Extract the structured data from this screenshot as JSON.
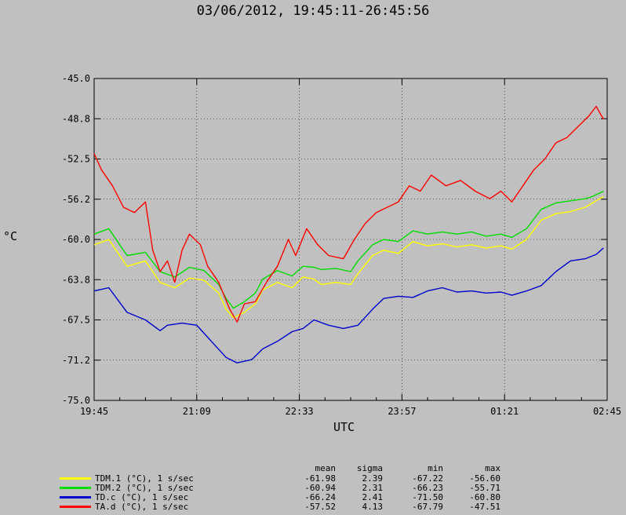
{
  "chart_data": {
    "type": "line",
    "title": "03/06/2012, 19:45:11-26:45:56",
    "xlabel": "UTC",
    "ylabel": "°C",
    "x_ticks": [
      "19:45",
      "21:09",
      "22:33",
      "23:57",
      "01:21",
      "02:45"
    ],
    "y_ticks": [
      "-45.0",
      "-48.8",
      "-52.5",
      "-56.2",
      "-60.0",
      "-63.8",
      "-67.5",
      "-71.2",
      "-75.0"
    ],
    "ylim": [
      -75.0,
      -45.0
    ],
    "xlim_hours": [
      0,
      7
    ],
    "grid": "dotted",
    "series": [
      {
        "name": "TDM.1 (°C), 1 s/sec",
        "color": "#ffff00",
        "points": [
          [
            0,
            -60.5
          ],
          [
            0.2,
            -60.0
          ],
          [
            0.45,
            -62.5
          ],
          [
            0.7,
            -62.0
          ],
          [
            0.9,
            -64.0
          ],
          [
            1.1,
            -64.5
          ],
          [
            1.3,
            -63.6
          ],
          [
            1.5,
            -63.8
          ],
          [
            1.7,
            -65.0
          ],
          [
            1.8,
            -66.5
          ],
          [
            1.9,
            -67.3
          ],
          [
            2.05,
            -66.8
          ],
          [
            2.2,
            -66.0
          ],
          [
            2.3,
            -64.7
          ],
          [
            2.5,
            -64.0
          ],
          [
            2.7,
            -64.5
          ],
          [
            2.85,
            -63.5
          ],
          [
            3.0,
            -63.7
          ],
          [
            3.1,
            -64.2
          ],
          [
            3.3,
            -64.0
          ],
          [
            3.5,
            -64.2
          ],
          [
            3.6,
            -63.2
          ],
          [
            3.8,
            -61.5
          ],
          [
            3.95,
            -61.0
          ],
          [
            4.15,
            -61.3
          ],
          [
            4.35,
            -60.2
          ],
          [
            4.55,
            -60.6
          ],
          [
            4.75,
            -60.4
          ],
          [
            4.95,
            -60.7
          ],
          [
            5.15,
            -60.5
          ],
          [
            5.35,
            -60.8
          ],
          [
            5.55,
            -60.6
          ],
          [
            5.7,
            -60.9
          ],
          [
            5.9,
            -60.0
          ],
          [
            6.1,
            -58.2
          ],
          [
            6.3,
            -57.6
          ],
          [
            6.5,
            -57.4
          ],
          [
            6.7,
            -57.0
          ],
          [
            6.8,
            -56.6
          ],
          [
            6.95,
            -56.0
          ]
        ]
      },
      {
        "name": "TDM.2 (°C), 1 s/sec",
        "color": "#00dd00",
        "points": [
          [
            0,
            -59.5
          ],
          [
            0.2,
            -59.0
          ],
          [
            0.45,
            -61.5
          ],
          [
            0.7,
            -61.2
          ],
          [
            0.9,
            -63.0
          ],
          [
            1.1,
            -63.5
          ],
          [
            1.3,
            -62.6
          ],
          [
            1.5,
            -62.9
          ],
          [
            1.7,
            -64.2
          ],
          [
            1.8,
            -65.5
          ],
          [
            1.9,
            -66.4
          ],
          [
            2.05,
            -65.8
          ],
          [
            2.2,
            -65.0
          ],
          [
            2.3,
            -63.7
          ],
          [
            2.5,
            -62.9
          ],
          [
            2.7,
            -63.4
          ],
          [
            2.85,
            -62.5
          ],
          [
            3.0,
            -62.6
          ],
          [
            3.1,
            -62.8
          ],
          [
            3.3,
            -62.7
          ],
          [
            3.5,
            -63.0
          ],
          [
            3.6,
            -62.0
          ],
          [
            3.8,
            -60.5
          ],
          [
            3.95,
            -60.0
          ],
          [
            4.15,
            -60.2
          ],
          [
            4.35,
            -59.2
          ],
          [
            4.55,
            -59.5
          ],
          [
            4.75,
            -59.3
          ],
          [
            4.95,
            -59.5
          ],
          [
            5.15,
            -59.3
          ],
          [
            5.35,
            -59.7
          ],
          [
            5.55,
            -59.5
          ],
          [
            5.7,
            -59.8
          ],
          [
            5.9,
            -59.0
          ],
          [
            6.1,
            -57.2
          ],
          [
            6.3,
            -56.6
          ],
          [
            6.5,
            -56.4
          ],
          [
            6.7,
            -56.2
          ],
          [
            6.8,
            -56.0
          ],
          [
            6.95,
            -55.5
          ]
        ]
      },
      {
        "name": "TD.c (°C), 1 s/sec",
        "color": "#0000cc",
        "points": [
          [
            0,
            -64.8
          ],
          [
            0.2,
            -64.5
          ],
          [
            0.45,
            -66.8
          ],
          [
            0.7,
            -67.5
          ],
          [
            0.9,
            -68.5
          ],
          [
            1.0,
            -68.0
          ],
          [
            1.2,
            -67.8
          ],
          [
            1.4,
            -68.0
          ],
          [
            1.6,
            -69.5
          ],
          [
            1.8,
            -71.0
          ],
          [
            1.95,
            -71.5
          ],
          [
            2.15,
            -71.2
          ],
          [
            2.3,
            -70.2
          ],
          [
            2.5,
            -69.5
          ],
          [
            2.7,
            -68.6
          ],
          [
            2.85,
            -68.3
          ],
          [
            3.0,
            -67.5
          ],
          [
            3.2,
            -68.0
          ],
          [
            3.4,
            -68.3
          ],
          [
            3.6,
            -68.0
          ],
          [
            3.8,
            -66.5
          ],
          [
            3.95,
            -65.5
          ],
          [
            4.15,
            -65.3
          ],
          [
            4.35,
            -65.4
          ],
          [
            4.55,
            -64.8
          ],
          [
            4.75,
            -64.5
          ],
          [
            4.95,
            -64.9
          ],
          [
            5.15,
            -64.8
          ],
          [
            5.35,
            -65.0
          ],
          [
            5.55,
            -64.9
          ],
          [
            5.7,
            -65.2
          ],
          [
            5.9,
            -64.8
          ],
          [
            6.1,
            -64.3
          ],
          [
            6.3,
            -63.0
          ],
          [
            6.5,
            -62.0
          ],
          [
            6.7,
            -61.8
          ],
          [
            6.85,
            -61.4
          ],
          [
            6.95,
            -60.8
          ]
        ]
      },
      {
        "name": "TA.d (°C), 1 s/sec",
        "color": "#ff0000",
        "points": [
          [
            0,
            -52.0
          ],
          [
            0.1,
            -53.5
          ],
          [
            0.25,
            -55.0
          ],
          [
            0.4,
            -57.0
          ],
          [
            0.55,
            -57.5
          ],
          [
            0.7,
            -56.5
          ],
          [
            0.8,
            -61.0
          ],
          [
            0.9,
            -63.0
          ],
          [
            1.0,
            -62.0
          ],
          [
            1.1,
            -64.0
          ],
          [
            1.2,
            -61.0
          ],
          [
            1.3,
            -59.5
          ],
          [
            1.45,
            -60.5
          ],
          [
            1.55,
            -62.5
          ],
          [
            1.7,
            -64.0
          ],
          [
            1.85,
            -66.5
          ],
          [
            1.95,
            -67.7
          ],
          [
            2.05,
            -66.0
          ],
          [
            2.2,
            -65.8
          ],
          [
            2.35,
            -64.0
          ],
          [
            2.5,
            -62.5
          ],
          [
            2.65,
            -60.0
          ],
          [
            2.75,
            -61.5
          ],
          [
            2.9,
            -59.0
          ],
          [
            3.05,
            -60.5
          ],
          [
            3.2,
            -61.5
          ],
          [
            3.4,
            -61.8
          ],
          [
            3.55,
            -60.0
          ],
          [
            3.7,
            -58.5
          ],
          [
            3.85,
            -57.5
          ],
          [
            4.0,
            -57.0
          ],
          [
            4.15,
            -56.5
          ],
          [
            4.3,
            -55.0
          ],
          [
            4.45,
            -55.5
          ],
          [
            4.6,
            -54.0
          ],
          [
            4.8,
            -55.0
          ],
          [
            5.0,
            -54.5
          ],
          [
            5.2,
            -55.5
          ],
          [
            5.4,
            -56.2
          ],
          [
            5.55,
            -55.5
          ],
          [
            5.7,
            -56.5
          ],
          [
            5.85,
            -55.0
          ],
          [
            6.0,
            -53.5
          ],
          [
            6.15,
            -52.5
          ],
          [
            6.3,
            -51.0
          ],
          [
            6.45,
            -50.5
          ],
          [
            6.6,
            -49.5
          ],
          [
            6.75,
            -48.5
          ],
          [
            6.85,
            -47.6
          ],
          [
            6.95,
            -48.8
          ]
        ]
      }
    ],
    "stats": {
      "headers": [
        "mean",
        "sigma",
        "min",
        "max"
      ],
      "rows": [
        [
          "-61.98",
          "2.39",
          "-67.22",
          "-56.60"
        ],
        [
          "-60.94",
          "2.31",
          "-66.23",
          "-55.71"
        ],
        [
          "-66.24",
          "2.41",
          "-71.50",
          "-60.80"
        ],
        [
          "-57.52",
          "4.13",
          "-67.79",
          "-47.51"
        ]
      ]
    }
  }
}
